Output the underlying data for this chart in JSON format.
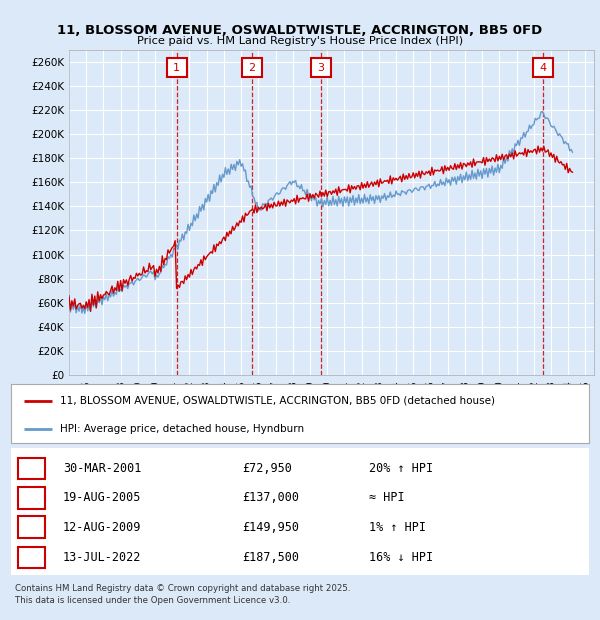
{
  "title": "11, BLOSSOM AVENUE, OSWALDTWISTLE, ACCRINGTON, BB5 0FD",
  "subtitle": "Price paid vs. HM Land Registry's House Price Index (HPI)",
  "ylabel_ticks": [
    "£0",
    "£20K",
    "£40K",
    "£60K",
    "£80K",
    "£100K",
    "£120K",
    "£140K",
    "£160K",
    "£180K",
    "£200K",
    "£220K",
    "£240K",
    "£260K"
  ],
  "ytick_values": [
    0,
    20000,
    40000,
    60000,
    80000,
    100000,
    120000,
    140000,
    160000,
    180000,
    200000,
    220000,
    240000,
    260000
  ],
  "ylim": [
    0,
    270000
  ],
  "xlim_start": 1995.0,
  "xlim_end": 2025.5,
  "background_color": "#dce9f8",
  "grid_color": "#ffffff",
  "red_line_color": "#cc0000",
  "blue_line_color": "#6699cc",
  "sale_color": "#cc0000",
  "vline_color": "#cc0000",
  "transactions": [
    {
      "num": 1,
      "date": "30-MAR-2001",
      "price": 72950,
      "pct": "20%",
      "dir": "↑",
      "year": 2001.25
    },
    {
      "num": 2,
      "date": "19-AUG-2005",
      "price": 137000,
      "pct": "≈",
      "dir": "",
      "year": 2005.63
    },
    {
      "num": 3,
      "date": "12-AUG-2009",
      "price": 149950,
      "pct": "1%",
      "dir": "↑",
      "year": 2009.62
    },
    {
      "num": 4,
      "date": "13-JUL-2022",
      "price": 187500,
      "pct": "16%",
      "dir": "↓",
      "year": 2022.54
    }
  ],
  "legend1": "11, BLOSSOM AVENUE, OSWALDTWISTLE, ACCRINGTON, BB5 0FD (detached house)",
  "legend2": "HPI: Average price, detached house, Hyndburn",
  "footer1": "Contains HM Land Registry data © Crown copyright and database right 2025.",
  "footer2": "This data is licensed under the Open Government Licence v3.0."
}
